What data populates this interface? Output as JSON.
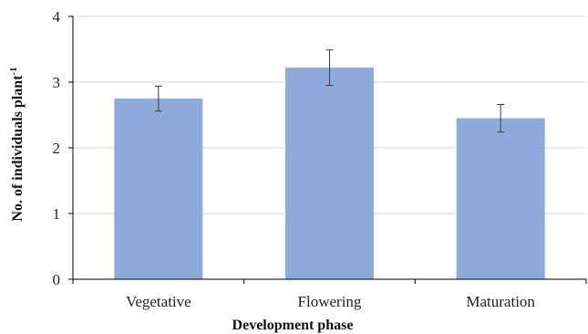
{
  "chart_data": {
    "type": "bar",
    "categories": [
      "Vegetative",
      "Flowering",
      "Maturation"
    ],
    "values": [
      2.75,
      3.22,
      2.45
    ],
    "error": [
      0.19,
      0.27,
      0.21
    ],
    "xlabel": "Development phase",
    "ylabel": "No. of individuals plant",
    "ylabel_superscript": "-1",
    "ylim": [
      0,
      4
    ],
    "yticks": [
      "0",
      "1",
      "2",
      "3",
      "4"
    ],
    "grid": true,
    "legend": "none",
    "colors": {
      "bar": "#8eaadb",
      "error_bar": "#3a3a3a",
      "grid": "#d9d9d9",
      "axis": "#000000"
    }
  }
}
